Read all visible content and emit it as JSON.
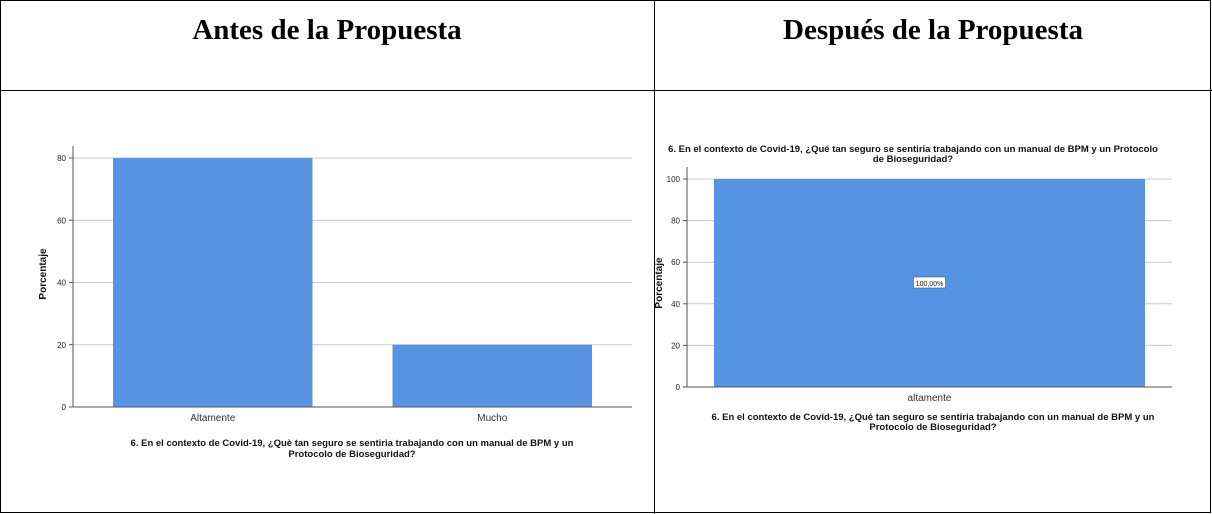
{
  "headers": {
    "before": "Antes de la Propuesta",
    "after": "Después de la Propuesta"
  },
  "chart_data": [
    {
      "type": "bar",
      "title": "",
      "xlabel": "6. En el contexto de Covid-19, ¿Què tan seguro se sentiria trabajando con un manual de BPM y un Protocolo de Bioseguridad?",
      "xlabel_lines": [
        "6. En el contexto de Covid-19, ¿Què tan seguro se sentiria trabajando con un manual de BPM y un",
        "Protocolo de Bioseguridad?"
      ],
      "ylabel": "Porcentaje",
      "categories": [
        "Altamente",
        "Mucho"
      ],
      "values": [
        80,
        20
      ],
      "ylim": [
        0,
        80
      ],
      "yticks": [
        0,
        20,
        40,
        60,
        80
      ],
      "grid": true,
      "bar_color": "#5693e3"
    },
    {
      "type": "bar",
      "title": "6. En el contexto de Covid-19, ¿Qué tan seguro se sentiria trabajando con un manual de BPM y un Protocolo de Bioseguridad?",
      "title_lines": [
        "6. En el contexto de Covid-19, ¿Qué tan seguro se sentiria trabajando con un manual de BPM y un Protocolo",
        "de Bioseguridad?"
      ],
      "xlabel": "6. En el contexto de Covid-19, ¿Qué tan seguro se sentiria trabajando con un manual de BPM y un Protocolo de Bioseguridad?",
      "xlabel_lines": [
        "6. En el contexto de Covid-19, ¿Qué tan seguro se sentiria trabajando con un manual de BPM y un",
        "Protocolo de Bioseguridad?"
      ],
      "ylabel": "Porcentaje",
      "categories": [
        "altamente"
      ],
      "values": [
        100
      ],
      "data_labels": [
        "100,00%"
      ],
      "ylim": [
        0,
        100
      ],
      "yticks": [
        0,
        20,
        40,
        60,
        80,
        100
      ],
      "grid": true,
      "bar_color": "#5693e3"
    }
  ]
}
